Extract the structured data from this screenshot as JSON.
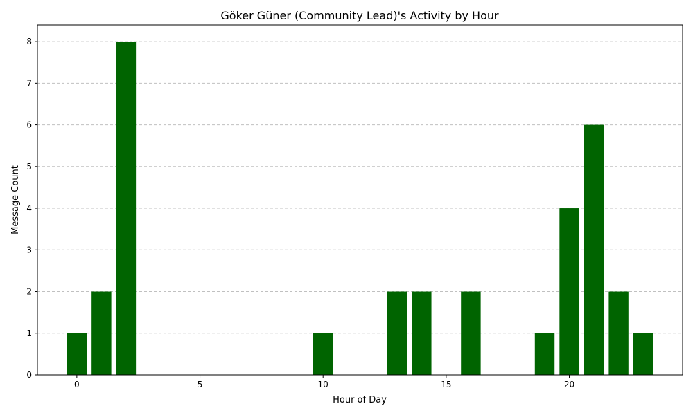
{
  "chart_data": {
    "type": "bar",
    "title": "Göker Güner (Community Lead)'s Activity by Hour",
    "xlabel": "Hour of Day",
    "ylabel": "Message Count",
    "x": [
      0,
      1,
      2,
      10,
      13,
      14,
      16,
      19,
      20,
      21,
      22,
      23
    ],
    "values": [
      1,
      2,
      8,
      1,
      2,
      2,
      2,
      1,
      4,
      6,
      2,
      1
    ],
    "xlim": [
      -1.6,
      24.6
    ],
    "ylim": [
      0,
      8.4
    ],
    "xticks": [
      0,
      5,
      10,
      15,
      20
    ],
    "yticks": [
      0,
      1,
      2,
      3,
      4,
      5,
      6,
      7,
      8
    ],
    "bar_color": "#006400",
    "grid": {
      "y": true,
      "x": false,
      "style": "dashed",
      "color": "#c0c0c0"
    }
  }
}
